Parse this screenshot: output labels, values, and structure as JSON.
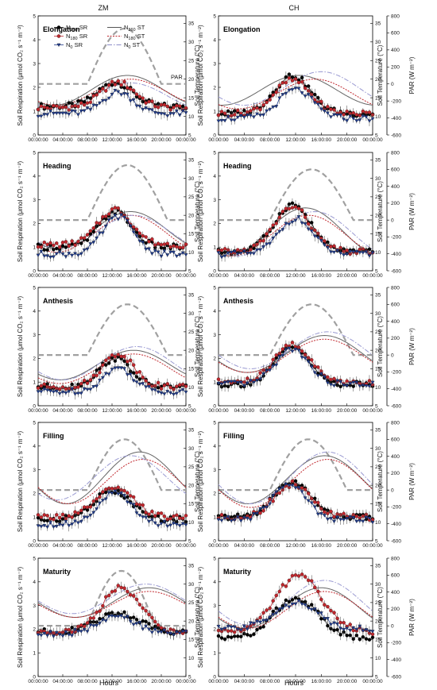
{
  "figure": {
    "columns": [
      "ZM",
      "CH"
    ],
    "xlabel": "Hours",
    "ylabel_left": "Soil Respiration (μmol CO₂ s⁻¹ m⁻²)",
    "ylabel_temp": "Soil Temperature (°C)",
    "ylabel_par": "PAR (W m⁻²)",
    "x_ticks": [
      "00:00:00",
      "04:00:00",
      "08:00:00",
      "12:00:00",
      "16:00:00",
      "20:00:00",
      "00:00:00"
    ],
    "sr_ticks": [
      "0",
      "1",
      "2",
      "3",
      "4",
      "5"
    ],
    "temp_ticks": [
      "5",
      "10",
      "15",
      "20",
      "25",
      "30",
      "35"
    ],
    "par_ticks": [
      "-600",
      "-400",
      "-200",
      "0",
      "200",
      "400",
      "600",
      "800"
    ],
    "par_annotation": "PAR",
    "legend": [
      {
        "key": "n360_sr",
        "label": "N",
        "sub": "360",
        "suffix": " SR",
        "color": "#000000"
      },
      {
        "key": "n180_sr",
        "label": "N",
        "sub": "180",
        "suffix": " SR",
        "color": "#c0272d"
      },
      {
        "key": "n0_sr",
        "label": "N",
        "sub": "0",
        "suffix": " SR",
        "color": "#1f3a8a"
      },
      {
        "key": "n360_st",
        "label": "N",
        "sub": "360",
        "suffix": " ST",
        "color": "#555555"
      },
      {
        "key": "n180_st",
        "label": "N",
        "sub": "180",
        "suffix": " ST",
        "color": "#c0272d"
      },
      {
        "key": "n0_st",
        "label": "N",
        "sub": "0",
        "suffix": " ST",
        "color": "#8c8cc8"
      }
    ],
    "colors": {
      "n360": "#000000",
      "n180": "#c0272d",
      "n0": "#1f3a8a",
      "n360_st": "#666666",
      "n180_st": "#c0272d",
      "n0_st": "#9a9ad2",
      "par": "#a0a0a0"
    }
  },
  "chart_data": [
    {
      "type": "line",
      "column": "ZM",
      "stage": "Elongation",
      "sr_ylim": [
        0,
        5
      ],
      "temp_ylim": [
        5,
        37
      ],
      "par_ylim": [
        -600,
        800
      ],
      "sr": {
        "n360": {
          "base": 1.2,
          "peak": 2.2,
          "tpeak": 12.5,
          "w": 2.8
        },
        "n180": {
          "base": 1.15,
          "peak": 2.2,
          "tpeak": 13.0,
          "w": 2.8
        },
        "n0": {
          "base": 0.9,
          "peak": 1.8,
          "tpeak": 13.0,
          "w": 2.5
        }
      },
      "st": {
        "n360": {
          "min": 13,
          "max": 21,
          "tpeak": 14.5
        },
        "n180": {
          "min": 13,
          "max": 20,
          "tpeak": 15.0
        },
        "n0": {
          "min": 12,
          "max": 19,
          "tpeak": 15.0
        }
      },
      "par": {
        "start": 8,
        "end": 20,
        "peak": 650
      }
    },
    {
      "type": "line",
      "column": "CH",
      "stage": "Elongation",
      "sr_ylim": [
        0,
        5
      ],
      "temp_ylim": [
        5,
        37
      ],
      "par_ylim": [
        -600,
        800
      ],
      "sr": {
        "n360": {
          "base": 0.9,
          "peak": 2.5,
          "tpeak": 11.5,
          "w": 2.8
        },
        "n180": {
          "base": 0.9,
          "peak": 2.3,
          "tpeak": 11.5,
          "w": 2.8
        },
        "n0": {
          "base": 0.7,
          "peak": 1.9,
          "tpeak": 12.0,
          "w": 2.6
        }
      },
      "st": {
        "n360": {
          "min": 13,
          "max": 21,
          "tpeak": 12.5
        },
        "n180": {
          "min": 12,
          "max": 20,
          "tpeak": 15.0
        },
        "n0": {
          "min": 13,
          "max": 22,
          "tpeak": 16.0
        }
      },
      "par": null
    },
    {
      "type": "line",
      "column": "ZM",
      "stage": "Heading",
      "sr_ylim": [
        0,
        5
      ],
      "temp_ylim": [
        5,
        37
      ],
      "par_ylim": [
        -600,
        800
      ],
      "sr": {
        "n360": {
          "base": 1.0,
          "peak": 2.5,
          "tpeak": 12.5,
          "w": 2.6
        },
        "n180": {
          "base": 1.1,
          "peak": 2.6,
          "tpeak": 12.5,
          "w": 2.7
        },
        "n0": {
          "base": 0.7,
          "peak": 2.3,
          "tpeak": 13.0,
          "w": 2.5
        }
      },
      "st": {
        "n360": {
          "min": 11,
          "max": 21,
          "tpeak": 15.0
        },
        "n180": {
          "min": 10,
          "max": 20,
          "tpeak": 15.0
        },
        "n0": {
          "min": 11,
          "max": 20,
          "tpeak": 15.5
        }
      },
      "par": {
        "start": 8,
        "end": 21,
        "peak": 650
      }
    },
    {
      "type": "line",
      "column": "CH",
      "stage": "Heading",
      "sr_ylim": [
        0,
        5
      ],
      "temp_ylim": [
        5,
        37
      ],
      "par_ylim": [
        -600,
        800
      ],
      "sr": {
        "n360": {
          "base": 0.8,
          "peak": 2.8,
          "tpeak": 11.5,
          "w": 2.8
        },
        "n180": {
          "base": 0.8,
          "peak": 2.7,
          "tpeak": 11.5,
          "w": 2.8
        },
        "n0": {
          "base": 0.7,
          "peak": 2.2,
          "tpeak": 12.0,
          "w": 2.6
        }
      },
      "st": {
        "n360": {
          "min": 9,
          "max": 22,
          "tpeak": 13.5
        },
        "n180": {
          "min": 9,
          "max": 20,
          "tpeak": 14.0
        },
        "n0": {
          "min": 9,
          "max": 21,
          "tpeak": 15.0
        }
      },
      "par": {
        "start": 8,
        "end": 21,
        "peak": 600
      }
    },
    {
      "type": "line",
      "column": "ZM",
      "stage": "Anthesis",
      "sr_ylim": [
        0,
        5
      ],
      "temp_ylim": [
        5,
        37
      ],
      "par_ylim": [
        -600,
        800
      ],
      "sr": {
        "n360": {
          "base": 0.8,
          "peak": 2.0,
          "tpeak": 12.5,
          "w": 2.6
        },
        "n180": {
          "base": 0.8,
          "peak": 2.2,
          "tpeak": 13.0,
          "w": 2.6
        },
        "n0": {
          "base": 0.6,
          "peak": 1.6,
          "tpeak": 13.0,
          "w": 2.4
        }
      },
      "st": {
        "n360": {
          "min": 12,
          "max": 20,
          "tpeak": 15.5
        },
        "n180": {
          "min": 11,
          "max": 19,
          "tpeak": 15.5
        },
        "n0": {
          "min": 12,
          "max": 21,
          "tpeak": 16.0
        }
      },
      "par": {
        "start": 8,
        "end": 21,
        "peak": 600
      }
    },
    {
      "type": "line",
      "column": "CH",
      "stage": "Anthesis",
      "sr_ylim": [
        0,
        5
      ],
      "temp_ylim": [
        5,
        37
      ],
      "par_ylim": [
        -600,
        800
      ],
      "sr": {
        "n360": {
          "base": 0.9,
          "peak": 2.5,
          "tpeak": 11.5,
          "w": 2.6
        },
        "n180": {
          "base": 1.0,
          "peak": 2.6,
          "tpeak": 11.5,
          "w": 2.7
        },
        "n0": {
          "base": 0.9,
          "peak": 2.4,
          "tpeak": 11.5,
          "w": 2.6
        }
      },
      "st": {
        "n360": {
          "min": 14,
          "max": 24,
          "tpeak": 16.5
        },
        "n180": {
          "min": 14,
          "max": 23,
          "tpeak": 16.5
        },
        "n0": {
          "min": 15,
          "max": 25,
          "tpeak": 17.0
        }
      },
      "par": {
        "start": 8,
        "end": 21,
        "peak": 600
      }
    },
    {
      "type": "line",
      "column": "ZM",
      "stage": "Filling",
      "sr_ylim": [
        0,
        5
      ],
      "temp_ylim": [
        5,
        37
      ],
      "par_ylim": [
        -600,
        800
      ],
      "sr": {
        "n360": {
          "base": 0.9,
          "peak": 2.1,
          "tpeak": 12.0,
          "w": 3.0
        },
        "n180": {
          "base": 1.0,
          "peak": 2.2,
          "tpeak": 12.5,
          "w": 3.0
        },
        "n0": {
          "base": 0.7,
          "peak": 2.0,
          "tpeak": 12.5,
          "w": 2.8
        }
      },
      "st": {
        "n360": {
          "min": 15,
          "max": 29,
          "tpeak": 16.5
        },
        "n180": {
          "min": 15,
          "max": 27,
          "tpeak": 17.0
        },
        "n0": {
          "min": 16,
          "max": 28,
          "tpeak": 15.0
        }
      },
      "par": {
        "start": 8,
        "end": 20,
        "peak": 600
      }
    },
    {
      "type": "line",
      "column": "CH",
      "stage": "Filling",
      "sr_ylim": [
        0,
        5
      ],
      "temp_ylim": [
        5,
        37
      ],
      "par_ylim": [
        -600,
        800
      ],
      "sr": {
        "n360": {
          "base": 1.0,
          "peak": 2.5,
          "tpeak": 11.5,
          "w": 2.8
        },
        "n180": {
          "base": 1.0,
          "peak": 2.4,
          "tpeak": 11.5,
          "w": 2.8
        },
        "n0": {
          "base": 0.9,
          "peak": 2.4,
          "tpeak": 11.0,
          "w": 2.6
        }
      },
      "st": {
        "n360": {
          "min": 15,
          "max": 28,
          "tpeak": 16.5
        },
        "n180": {
          "min": 14,
          "max": 27,
          "tpeak": 17.0
        },
        "n0": {
          "min": 15,
          "max": 29,
          "tpeak": 17.0
        }
      },
      "par": {
        "start": 8,
        "end": 20,
        "peak": 600
      }
    },
    {
      "type": "line",
      "column": "ZM",
      "stage": "Maturity",
      "sr_ylim": [
        0,
        5
      ],
      "temp_ylim": [
        5,
        37
      ],
      "par_ylim": [
        -600,
        800
      ],
      "sr": {
        "n360": {
          "base": 1.9,
          "peak": 2.7,
          "tpeak": 13.0,
          "w": 3.2
        },
        "n180": {
          "base": 1.9,
          "peak": 3.8,
          "tpeak": 13.5,
          "w": 3.0
        },
        "n0": {
          "base": 1.8,
          "peak": 2.5,
          "tpeak": 13.0,
          "w": 3.2
        }
      },
      "st": {
        "n360": {
          "min": 21,
          "max": 29,
          "tpeak": 18.0
        },
        "n180": {
          "min": 21,
          "max": 28,
          "tpeak": 18.0
        },
        "n0": {
          "min": 22,
          "max": 30,
          "tpeak": 17.5
        }
      },
      "par": {
        "start": 8,
        "end": 19,
        "peak": 650
      }
    },
    {
      "type": "line",
      "column": "CH",
      "stage": "Maturity",
      "sr_ylim": [
        0,
        5
      ],
      "temp_ylim": [
        5,
        37
      ],
      "par_ylim": [
        -600,
        800
      ],
      "sr": {
        "n360": {
          "base": 1.6,
          "peak": 3.3,
          "tpeak": 12.0,
          "w": 3.5
        },
        "n180": {
          "base": 1.9,
          "peak": 4.3,
          "tpeak": 12.5,
          "w": 3.5
        },
        "n0": {
          "base": 2.0,
          "peak": 3.1,
          "tpeak": 12.0,
          "w": 3.5
        }
      },
      "st": {
        "n360": {
          "min": 18,
          "max": 29,
          "tpeak": 16.0
        },
        "n180": {
          "min": 18,
          "max": 28,
          "tpeak": 16.5
        },
        "n0": {
          "min": 19,
          "max": 31,
          "tpeak": 16.5
        }
      },
      "par": null
    }
  ]
}
